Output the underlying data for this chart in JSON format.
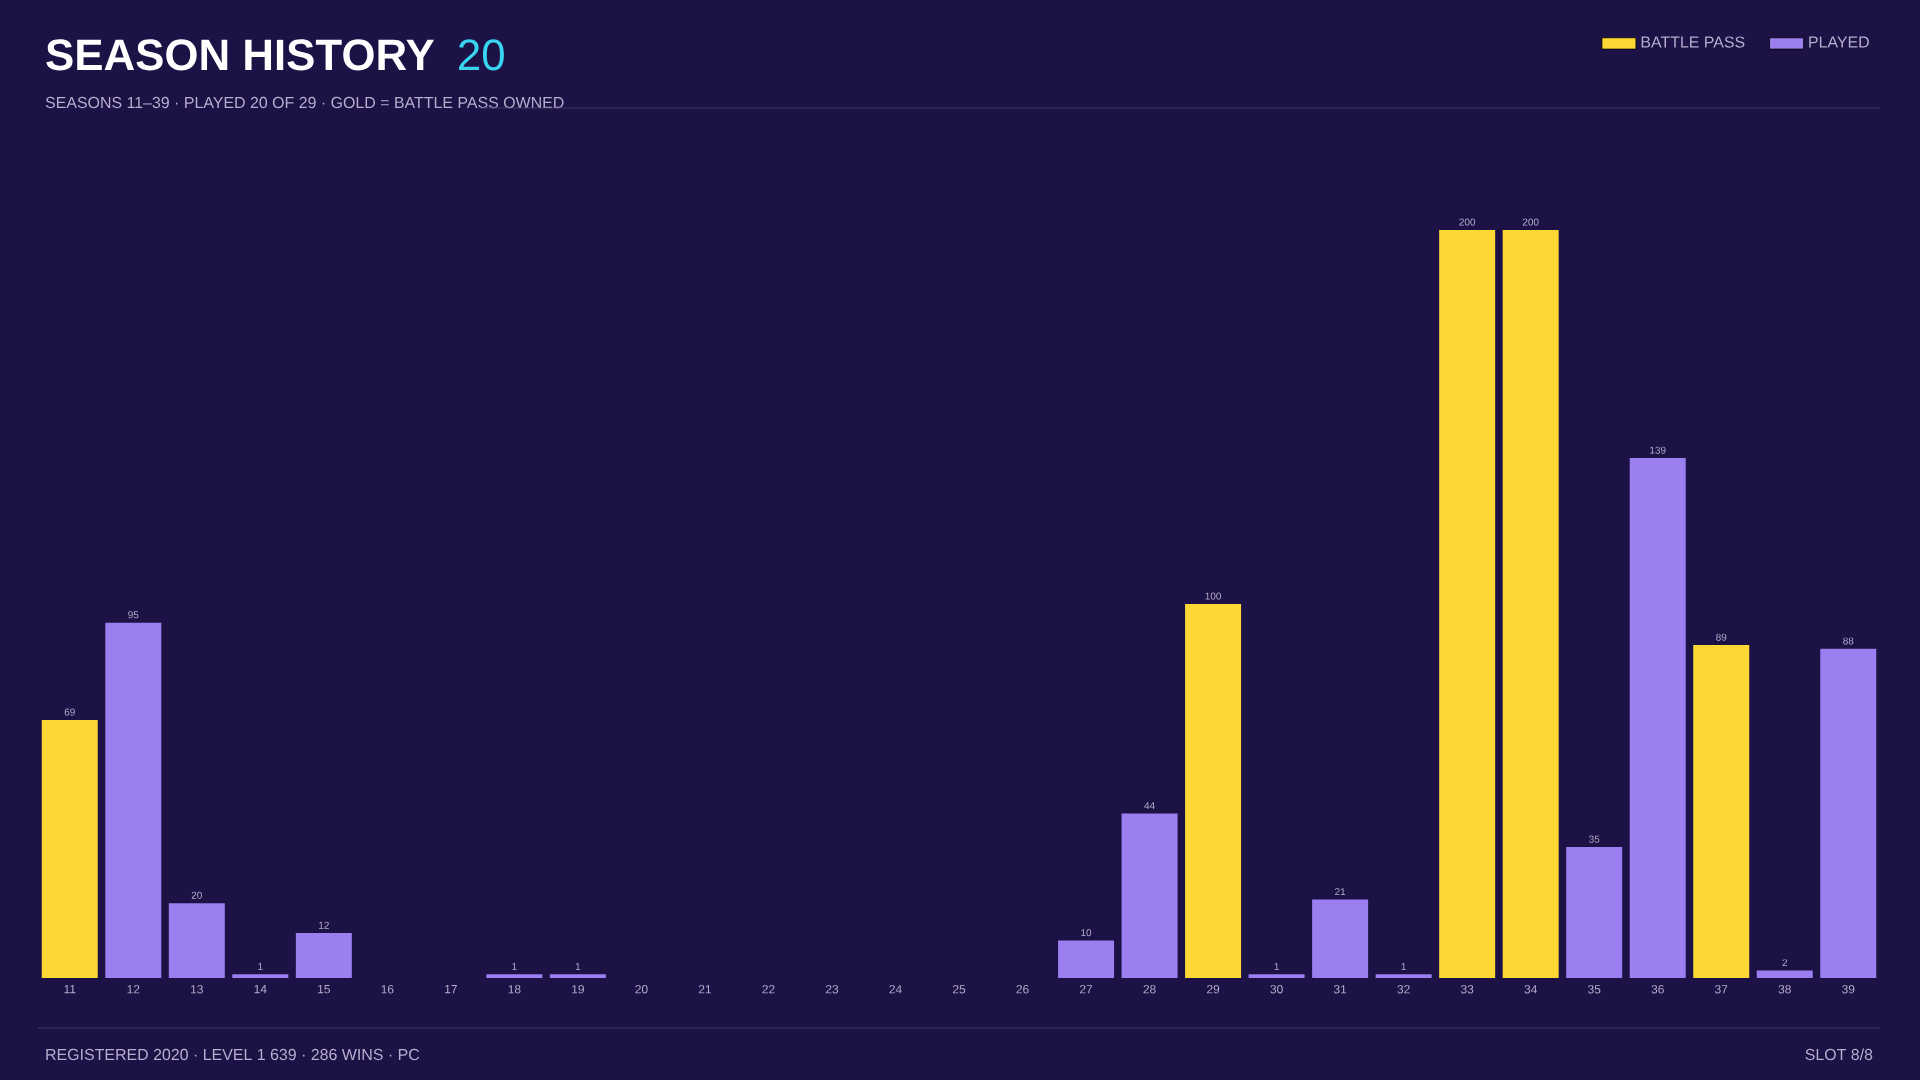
{
  "chart_data": {
    "type": "bar",
    "title": "SEASON HISTORY",
    "subtitle": "SEASONS 11–39 · PLAYED 20 OF 29 · GOLD = BATTLE PASS OWNED",
    "annotations": [
      "20",
      "REGISTERED 2020 · LEVEL 1 639 · 286 WINS · PC",
      "SLOT 8/8"
    ],
    "categories": [
      "11",
      "12",
      "13",
      "14",
      "15",
      "16",
      "17",
      "18",
      "19",
      "20",
      "21",
      "22",
      "23",
      "24",
      "25",
      "26",
      "27",
      "28",
      "29",
      "30",
      "31",
      "32",
      "33",
      "34",
      "35",
      "36",
      "37",
      "38",
      "39"
    ],
    "series": [
      {
        "name": "BATTLE PASS",
        "color": "#fdd835",
        "values": [
          69,
          null,
          null,
          null,
          null,
          null,
          null,
          null,
          null,
          null,
          null,
          null,
          null,
          null,
          null,
          null,
          null,
          null,
          100,
          null,
          null,
          null,
          200,
          200,
          null,
          null,
          89,
          null,
          null
        ]
      },
      {
        "name": "PLAYED",
        "color": "#9b7ff0",
        "values": [
          null,
          95,
          20,
          1,
          12,
          null,
          null,
          1,
          1,
          null,
          null,
          null,
          null,
          null,
          null,
          null,
          10,
          44,
          null,
          1,
          21,
          1,
          null,
          null,
          35,
          139,
          null,
          2,
          88
        ]
      }
    ],
    "data_labels": true,
    "legend": "top right",
    "grid": false
  }
}
